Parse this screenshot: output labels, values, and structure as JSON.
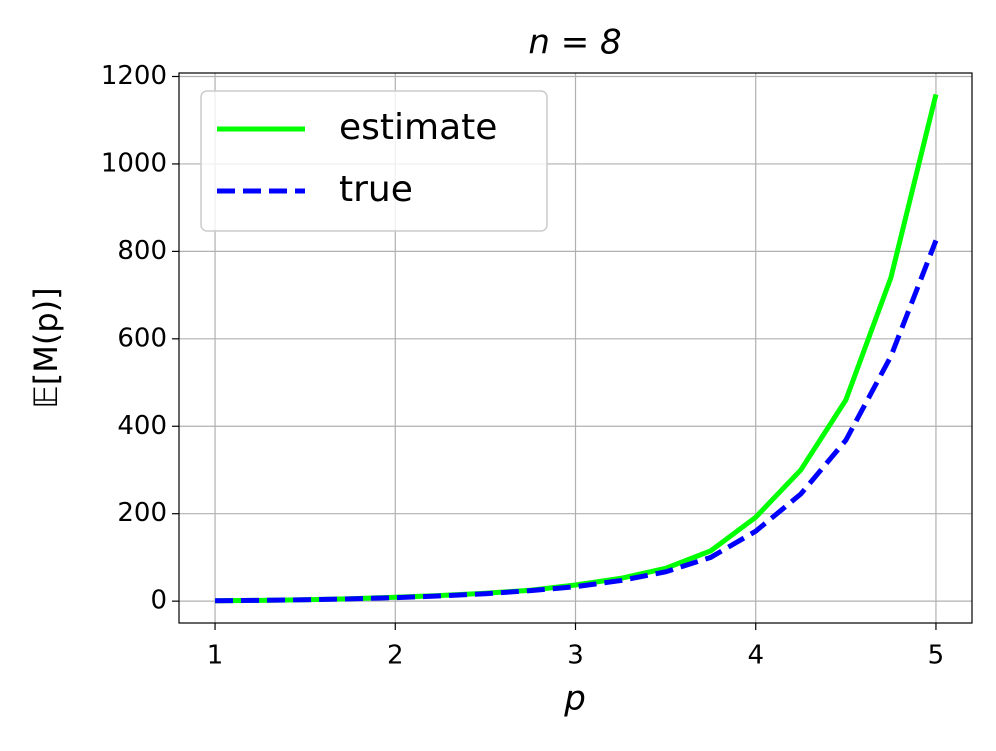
{
  "chart_data": {
    "type": "line",
    "title": "n = 8",
    "xlabel": "p",
    "ylabel": "𝔼[M(p)]",
    "x": [
      1,
      1.25,
      1.5,
      1.75,
      2,
      2.25,
      2.5,
      2.75,
      3,
      3.25,
      3.5,
      3.75,
      4,
      4.25,
      4.5,
      4.75,
      5
    ],
    "series": [
      {
        "name": "estimate",
        "color": "#00ff00",
        "dash": false,
        "values": [
          1,
          1.8,
          3.2,
          5.5,
          9,
          13,
          18,
          25,
          37,
          52,
          75,
          115,
          192,
          300,
          460,
          740,
          1159
        ]
      },
      {
        "name": "true",
        "color": "#0000ff",
        "dash": true,
        "values": [
          1,
          1.8,
          3.1,
          5.2,
          8,
          12,
          17,
          24,
          33,
          47,
          67,
          100,
          160,
          245,
          368,
          560,
          825
        ]
      }
    ],
    "xlim": [
      0.8,
      5.2
    ],
    "ylim": [
      -50,
      1208
    ],
    "xticks": [
      1,
      2,
      3,
      4,
      5
    ],
    "yticks": [
      0,
      200,
      400,
      600,
      800,
      1000,
      1200
    ],
    "grid": true,
    "legend": "upper left"
  }
}
